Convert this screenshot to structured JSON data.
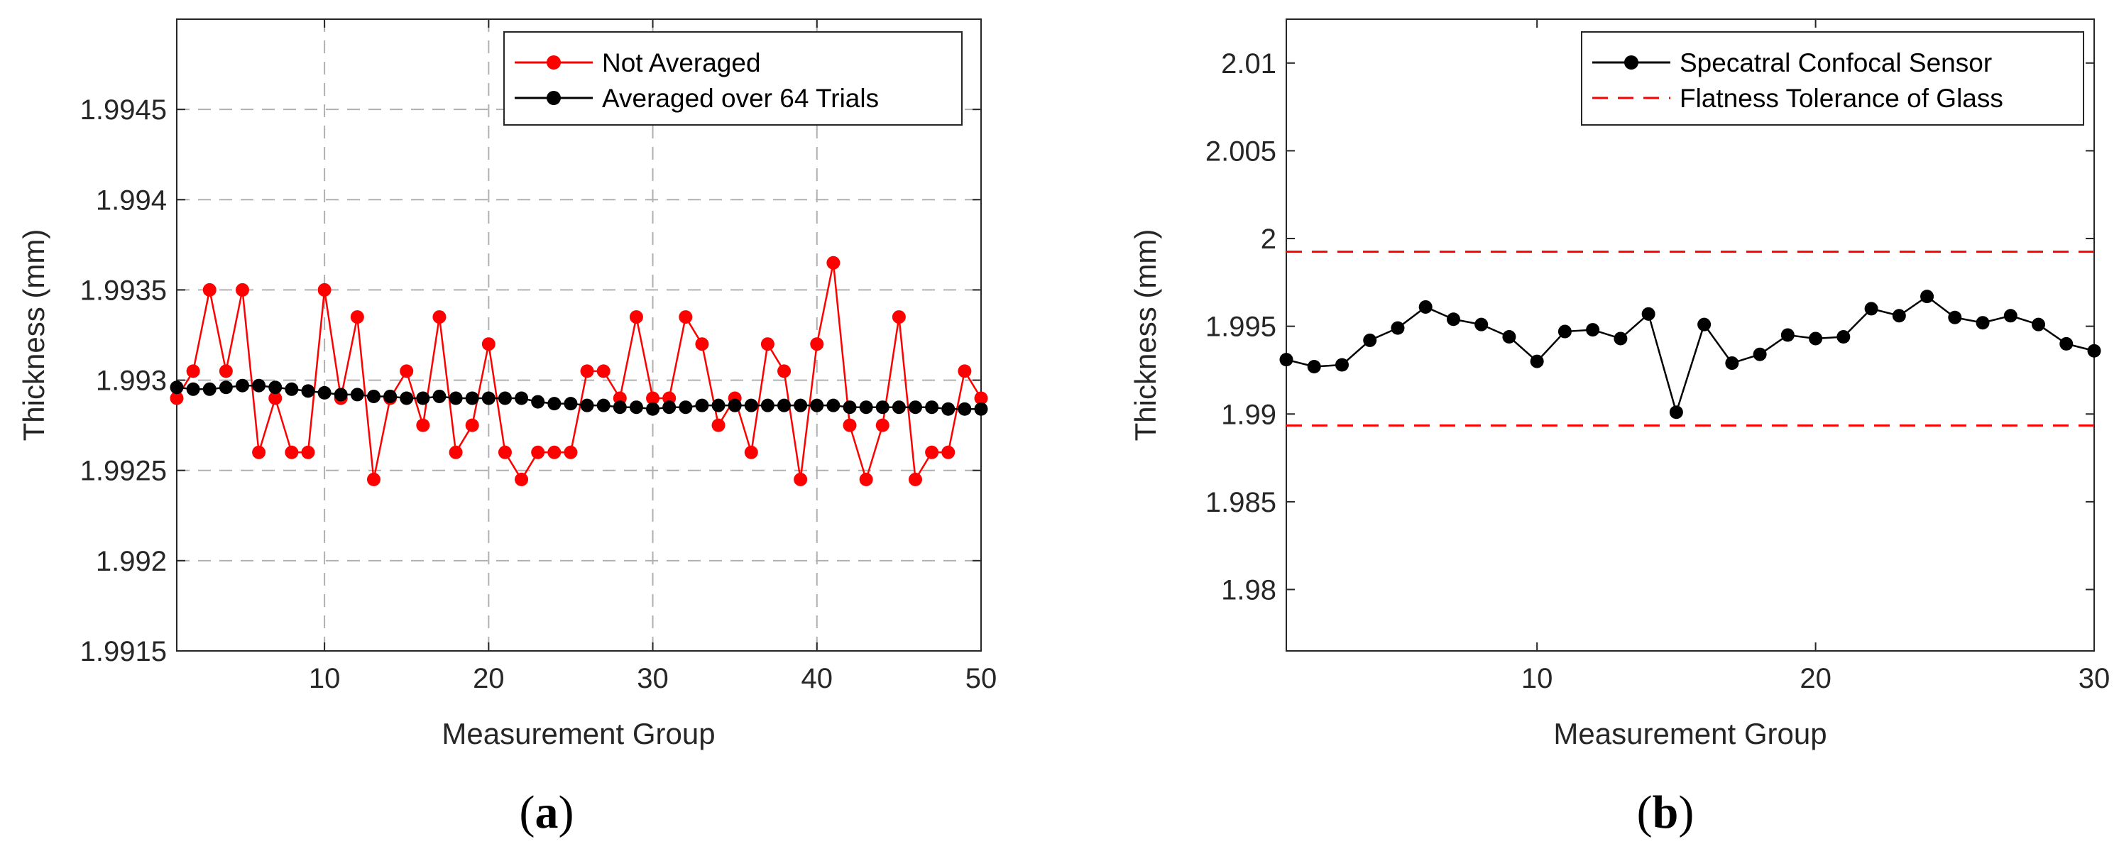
{
  "colors": {
    "not_averaged": "#ff0000",
    "averaged": "#000000",
    "tolerance": "#ff0000",
    "grid": "#b0b0b0"
  },
  "chart_data": [
    {
      "panel": "(a)",
      "panel_paren_open": "(",
      "panel_letter": "a",
      "panel_paren_close": ")",
      "type": "line",
      "xlabel": "Measurement Group",
      "ylabel": "Thickness (mm)",
      "xlim": [
        1,
        50
      ],
      "ylim": [
        1.9915,
        1.995
      ],
      "xticks": [
        10,
        20,
        30,
        40,
        50
      ],
      "xtick_labels": [
        "10",
        "20",
        "30",
        "40",
        "50"
      ],
      "yticks": [
        1.9915,
        1.992,
        1.9925,
        1.993,
        1.9935,
        1.994,
        1.9945
      ],
      "ytick_labels": [
        "1.9915",
        "1.992",
        "1.9925",
        "1.993",
        "1.9935",
        "1.994",
        "1.9945"
      ],
      "grid": true,
      "legend_location": "top-right",
      "x": [
        1,
        2,
        3,
        4,
        5,
        6,
        7,
        8,
        9,
        10,
        11,
        12,
        13,
        14,
        15,
        16,
        17,
        18,
        19,
        20,
        21,
        22,
        23,
        24,
        25,
        26,
        27,
        28,
        29,
        30,
        31,
        32,
        33,
        34,
        35,
        36,
        37,
        38,
        39,
        40,
        41,
        42,
        43,
        44,
        45,
        46,
        47,
        48,
        49,
        50
      ],
      "series": [
        {
          "name": "Not Averaged",
          "color": "#ff0000",
          "values": [
            1.9929,
            1.99305,
            1.9935,
            1.99305,
            1.9935,
            1.9926,
            1.9929,
            1.9926,
            1.9926,
            1.9935,
            1.9929,
            1.99335,
            1.99245,
            1.9929,
            1.99305,
            1.99275,
            1.99335,
            1.9926,
            1.99275,
            1.9932,
            1.9926,
            1.99245,
            1.9926,
            1.9926,
            1.9926,
            1.99305,
            1.99305,
            1.9929,
            1.99335,
            1.9929,
            1.9929,
            1.99335,
            1.9932,
            1.99275,
            1.9929,
            1.9926,
            1.9932,
            1.99305,
            1.99245,
            1.9932,
            1.99365,
            1.99275,
            1.99245,
            1.99275,
            1.99335,
            1.99245,
            1.9926,
            1.9926,
            1.99305,
            1.9929
          ]
        },
        {
          "name": "Averaged over 64 Trials",
          "color": "#000000",
          "values": [
            1.99296,
            1.99295,
            1.99295,
            1.99296,
            1.99297,
            1.99297,
            1.99296,
            1.99295,
            1.99294,
            1.99293,
            1.99292,
            1.99292,
            1.99291,
            1.99291,
            1.9929,
            1.9929,
            1.99291,
            1.9929,
            1.9929,
            1.9929,
            1.9929,
            1.9929,
            1.99288,
            1.99287,
            1.99287,
            1.99286,
            1.99286,
            1.99285,
            1.99285,
            1.99284,
            1.99285,
            1.99285,
            1.99286,
            1.99286,
            1.99286,
            1.99286,
            1.99286,
            1.99286,
            1.99286,
            1.99286,
            1.99286,
            1.99285,
            1.99285,
            1.99285,
            1.99285,
            1.99285,
            1.99285,
            1.99284,
            1.99284,
            1.99284
          ]
        }
      ]
    },
    {
      "panel": "(b)",
      "panel_paren_open": "(",
      "panel_letter": "b",
      "panel_paren_close": ")",
      "type": "line",
      "xlabel": "Measurement Group",
      "ylabel": "Thickness (mm)",
      "xlim": [
        1,
        30
      ],
      "ylim": [
        1.9765,
        2.0125
      ],
      "xticks": [
        10,
        20,
        30
      ],
      "xtick_labels": [
        "10",
        "20",
        "30"
      ],
      "yticks": [
        1.98,
        1.985,
        1.99,
        1.995,
        2.0,
        2.005,
        2.01
      ],
      "ytick_labels": [
        "1.98",
        "1.985",
        "1.99",
        "1.995",
        "2",
        "2.005",
        "2.01"
      ],
      "grid": false,
      "legend_location": "top-right",
      "x": [
        1,
        2,
        3,
        4,
        5,
        6,
        7,
        8,
        9,
        10,
        11,
        12,
        13,
        14,
        15,
        16,
        17,
        18,
        19,
        20,
        21,
        22,
        23,
        24,
        25,
        26,
        27,
        28,
        29,
        30
      ],
      "series": [
        {
          "name": "Specatral Confocal Sensor",
          "color": "#000000",
          "values": [
            1.9931,
            1.9927,
            1.9928,
            1.9942,
            1.9949,
            1.9961,
            1.9954,
            1.9951,
            1.9944,
            1.993,
            1.9947,
            1.9948,
            1.9943,
            1.9957,
            1.9901,
            1.9951,
            1.9929,
            1.9934,
            1.9945,
            1.9943,
            1.9944,
            1.996,
            1.9956,
            1.9967,
            1.9955,
            1.9952,
            1.9956,
            1.9951,
            1.994,
            1.9936
          ]
        }
      ],
      "reference_lines": [
        {
          "name": "Flatness Tolerance of Glass",
          "color": "#ff0000",
          "style": "dashed",
          "values": [
            1.99925,
            1.98935
          ]
        }
      ]
    }
  ]
}
